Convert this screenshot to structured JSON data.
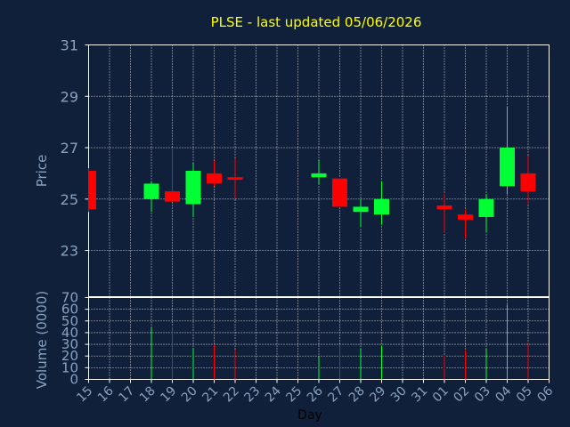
{
  "chart_data": {
    "type": "candlestick",
    "title": "PLSE - last updated 05/06/2026",
    "xlabel": "Day",
    "price_panel": {
      "ylabel": "Price",
      "ylim": [
        21.2,
        31
      ],
      "yticks": [
        "31",
        "29",
        "27",
        "25",
        "23"
      ],
      "grid": true
    },
    "volume_panel": {
      "ylabel": "Volume (0000)",
      "ylim": [
        0,
        70
      ],
      "yticks": [
        "70",
        "60",
        "50",
        "40",
        "30",
        "20",
        "10",
        "0"
      ],
      "grid": true
    },
    "x_ticks": [
      "15",
      "16",
      "17",
      "18",
      "19",
      "20",
      "21",
      "22",
      "23",
      "24",
      "25",
      "26",
      "27",
      "28",
      "29",
      "30",
      "31",
      "01",
      "02",
      "03",
      "04",
      "05",
      "06"
    ],
    "colors": {
      "up": "#00ff33",
      "down": "#ff0000",
      "title": "#ffff00",
      "axis": "#8aa0c0",
      "background": "#10203a",
      "grid": "#ffffff"
    },
    "candles": [
      {
        "day": "15",
        "open": 26.1,
        "high": 26.2,
        "low": 24.5,
        "close": 24.6,
        "volume": 0
      },
      {
        "day": "18",
        "open": 25.0,
        "high": 25.7,
        "low": 24.5,
        "close": 25.6,
        "volume": 44
      },
      {
        "day": "19",
        "open": 25.3,
        "high": 27.0,
        "low": 24.9,
        "close": 24.9,
        "volume": 45
      },
      {
        "day": "20",
        "open": 24.8,
        "high": 26.4,
        "low": 24.3,
        "close": 26.1,
        "volume": 27
      },
      {
        "day": "21",
        "open": 26.0,
        "high": 26.5,
        "low": 25.5,
        "close": 25.6,
        "volume": 30
      },
      {
        "day": "22",
        "open": 25.85,
        "high": 26.6,
        "low": 25.0,
        "close": 25.75,
        "volume": 26
      },
      {
        "day": "26",
        "open": 25.85,
        "high": 26.5,
        "low": 25.6,
        "close": 26.0,
        "volume": 19
      },
      {
        "day": "27",
        "open": 25.8,
        "high": 25.8,
        "low": 24.7,
        "close": 24.7,
        "volume": 30
      },
      {
        "day": "28",
        "open": 24.5,
        "high": 25.0,
        "low": 23.9,
        "close": 24.7,
        "volume": 26
      },
      {
        "day": "29",
        "open": 24.4,
        "high": 25.7,
        "low": 24.0,
        "close": 25.0,
        "volume": 29
      },
      {
        "day": "01",
        "open": 24.75,
        "high": 25.2,
        "low": 23.7,
        "close": 24.6,
        "volume": 21
      },
      {
        "day": "02",
        "open": 24.4,
        "high": 24.6,
        "low": 23.5,
        "close": 24.2,
        "volume": 25
      },
      {
        "day": "03",
        "open": 24.3,
        "high": 25.2,
        "low": 23.7,
        "close": 25.0,
        "volume": 26
      },
      {
        "day": "04",
        "open": 25.5,
        "high": 28.6,
        "low": 25.2,
        "close": 27.0,
        "volume": 64
      },
      {
        "day": "05",
        "open": 26.0,
        "high": 26.7,
        "low": 24.8,
        "close": 25.3,
        "volume": 31
      }
    ]
  }
}
